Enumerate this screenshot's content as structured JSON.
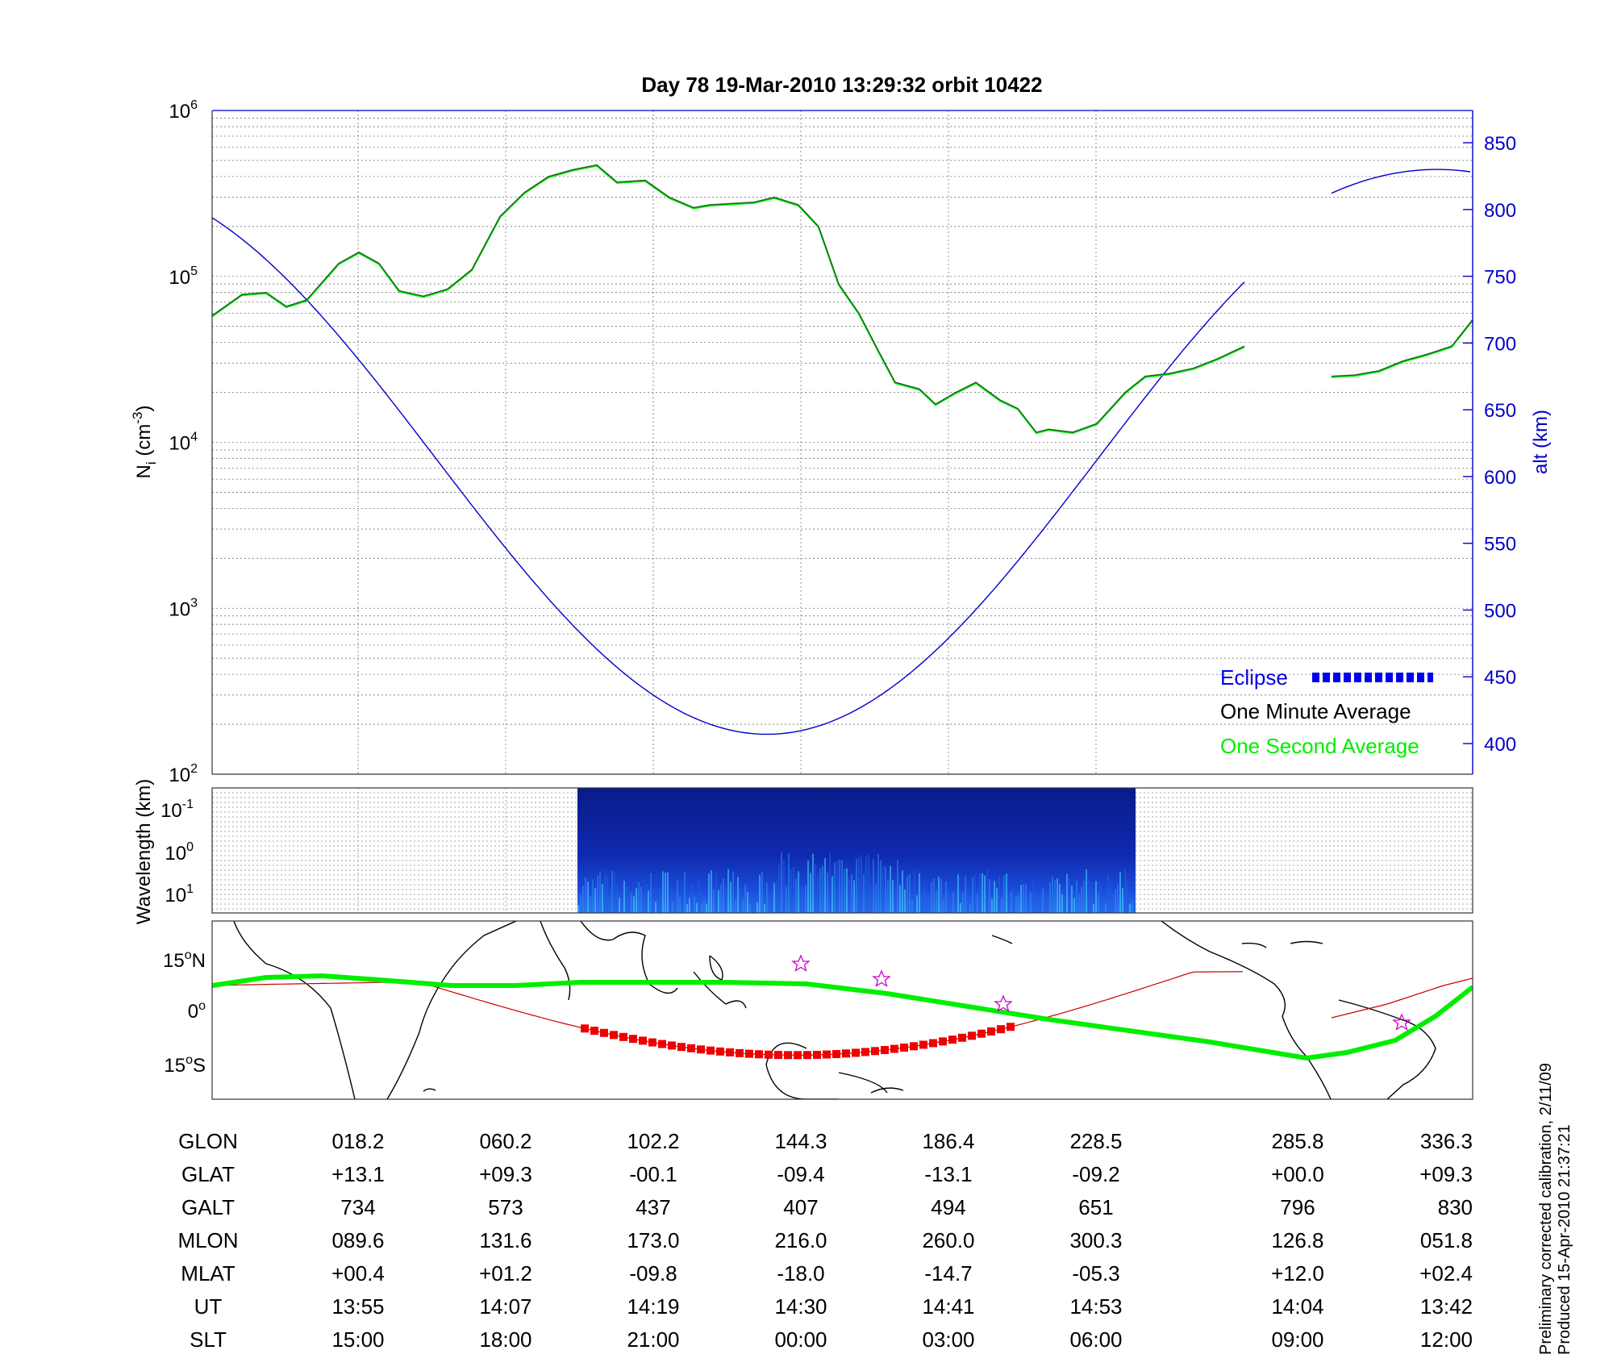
{
  "title": "Day 78  19-Mar-2010 13:29:32   orbit 10422",
  "top_panel": {
    "y_label_left": "N",
    "y_label_left_sub": "i",
    "y_label_left_unit": " (cm",
    "y_label_left_unit_exp": "-3",
    "y_label_left_unit_close": ")",
    "y_label_right": "alt (km)",
    "left_ticks": [
      {
        "base": "10",
        "exp": "6"
      },
      {
        "base": "10",
        "exp": "5"
      },
      {
        "base": "10",
        "exp": "4"
      },
      {
        "base": "10",
        "exp": "3"
      },
      {
        "base": "10",
        "exp": "2"
      }
    ],
    "right_ticks": [
      "850",
      "800",
      "750",
      "700",
      "650",
      "600",
      "550",
      "500",
      "450",
      "400"
    ],
    "legend": {
      "eclipse": "Eclipse",
      "minute": "One Minute Average",
      "second": "One Second Average"
    }
  },
  "mid_panel": {
    "y_label": "Wavelength (km)",
    "ticks": [
      {
        "base": "10",
        "exp": "-1"
      },
      {
        "base": "10",
        "exp": "0"
      },
      {
        "base": "10",
        "exp": "1"
      }
    ]
  },
  "map_panel": {
    "lat_ticks": [
      {
        "value": "15",
        "suffix": "N"
      },
      {
        "value": "0",
        "suffix": ""
      },
      {
        "value": "15",
        "suffix": "S"
      }
    ]
  },
  "table": {
    "row_labels": [
      "GLON",
      "GLAT",
      "GALT",
      "MLON",
      "MLAT",
      "UT",
      "SLT"
    ],
    "columns": [
      [
        "018.2",
        "+13.1",
        "734",
        "089.6",
        "+00.4",
        "13:55",
        "15:00"
      ],
      [
        "060.2",
        "+09.3",
        "573",
        "131.6",
        "+01.2",
        "14:07",
        "18:00"
      ],
      [
        "102.2",
        "-00.1",
        "437",
        "173.0",
        "-09.8",
        "14:19",
        "21:00"
      ],
      [
        "144.3",
        "-09.4",
        "407",
        "216.0",
        "-18.0",
        "14:30",
        "00:00"
      ],
      [
        "186.4",
        "-13.1",
        "494",
        "260.0",
        "-14.7",
        "14:41",
        "03:00"
      ],
      [
        "228.5",
        "-09.2",
        "651",
        "300.3",
        "-05.3",
        "14:53",
        "06:00"
      ],
      [
        "285.8",
        "+00.0",
        "796",
        "126.8",
        "+12.0",
        "14:04",
        "09:00"
      ],
      [
        "336.3",
        "+09.3",
        "830",
        "051.8",
        "+02.4",
        "13:42",
        "12:00"
      ]
    ]
  },
  "footer": {
    "line1": "Preliminary corrected calibration, 2/11/09",
    "line2": "Produced 15-Apr-2010 21:37:21"
  },
  "colors": {
    "altitude": "#0000cc",
    "eclipse": "#0000ee",
    "minute_avg": "#1b5e20",
    "second_avg": "#00ee00",
    "track_eclipse": "#ee0000"
  },
  "chart_data": [
    {
      "type": "line",
      "title": "Day 78  19-Mar-2010 13:29:32   orbit 10422",
      "ylabel": "Ni (cm-3)",
      "ylabel_right": "alt (km)",
      "yscale": "log",
      "ylim": [
        100,
        1000000
      ],
      "ylim_right": [
        375,
        875
      ],
      "grid": true,
      "legend_position": "bottom-right",
      "x": [
        "13:55",
        "14:07",
        "14:19",
        "14:30",
        "14:41",
        "14:53",
        "14:04",
        "13:42"
      ],
      "series": [
        {
          "name": "One Minute Average",
          "axis": "left",
          "values": [
            140000,
            80000,
            400000,
            300000,
            25000,
            12000,
            35000,
            30000
          ]
        },
        {
          "name": "One Second Average",
          "axis": "left",
          "values": [
            140000,
            80000,
            400000,
            300000,
            25000,
            12000,
            35000,
            30000
          ]
        },
        {
          "name": "altitude",
          "axis": "right",
          "values": [
            734,
            573,
            437,
            407,
            494,
            651,
            796,
            830
          ]
        },
        {
          "name": "Eclipse",
          "axis": "right",
          "note_range_km": [
            407,
            560
          ]
        }
      ]
    },
    {
      "type": "heatmap",
      "ylabel": "Wavelength (km)",
      "yscale": "log",
      "ylim": [
        0.1,
        10
      ]
    },
    {
      "type": "scatter",
      "xlabel": "GLON",
      "ylabel": "GLAT",
      "x": [
        18.2,
        60.2,
        102.2,
        144.3,
        186.4,
        228.5,
        285.8,
        336.3
      ],
      "values": [
        13.1,
        9.3,
        -0.1,
        -9.4,
        -13.1,
        -9.2,
        0.0,
        9.3
      ],
      "ylim": [
        -27,
        27
      ]
    }
  ]
}
